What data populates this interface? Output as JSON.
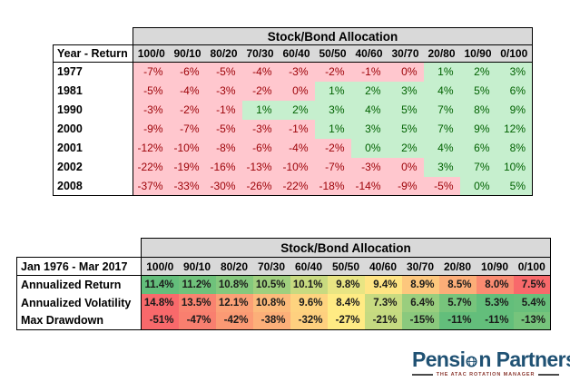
{
  "palette": {
    "header_bg": "#D9D9D9",
    "negative_bg": "#FFC7CE",
    "negative_text": "#9C0006",
    "positive_bg": "#C6EFCE",
    "positive_text": "#006100",
    "summary_value_text": "#1a1a1a",
    "brand_color": "#1F5173",
    "tagline_color": "#8B3A32"
  },
  "table1": {
    "title": "Stock/Bond Allocation",
    "corner_label": "Year - Return",
    "columns": [
      "100/0",
      "90/10",
      "80/20",
      "70/30",
      "60/40",
      "50/50",
      "40/60",
      "30/70",
      "20/80",
      "10/90",
      "0/100"
    ],
    "rows": [
      {
        "label": "1977",
        "values": [
          "-7%",
          "-6%",
          "-5%",
          "-4%",
          "-3%",
          "-2%",
          "-1%",
          "0%",
          "1%",
          "2%",
          "3%"
        ],
        "signs": [
          "n",
          "n",
          "n",
          "n",
          "n",
          "n",
          "n",
          "n",
          "p",
          "p",
          "p"
        ]
      },
      {
        "label": "1981",
        "values": [
          "-5%",
          "-4%",
          "-3%",
          "-2%",
          "0%",
          "1%",
          "2%",
          "3%",
          "4%",
          "5%",
          "6%"
        ],
        "signs": [
          "n",
          "n",
          "n",
          "n",
          "n",
          "p",
          "p",
          "p",
          "p",
          "p",
          "p"
        ]
      },
      {
        "label": "1990",
        "values": [
          "-3%",
          "-2%",
          "-1%",
          "1%",
          "2%",
          "3%",
          "4%",
          "5%",
          "7%",
          "8%",
          "9%"
        ],
        "signs": [
          "n",
          "n",
          "n",
          "p",
          "p",
          "p",
          "p",
          "p",
          "p",
          "p",
          "p"
        ]
      },
      {
        "label": "2000",
        "values": [
          "-9%",
          "-7%",
          "-5%",
          "-3%",
          "-1%",
          "1%",
          "3%",
          "5%",
          "7%",
          "9%",
          "12%"
        ],
        "signs": [
          "n",
          "n",
          "n",
          "n",
          "n",
          "p",
          "p",
          "p",
          "p",
          "p",
          "p"
        ]
      },
      {
        "label": "2001",
        "values": [
          "-12%",
          "-10%",
          "-8%",
          "-6%",
          "-4%",
          "-2%",
          "0%",
          "2%",
          "4%",
          "6%",
          "8%"
        ],
        "signs": [
          "n",
          "n",
          "n",
          "n",
          "n",
          "n",
          "p",
          "p",
          "p",
          "p",
          "p"
        ]
      },
      {
        "label": "2002",
        "values": [
          "-22%",
          "-19%",
          "-16%",
          "-13%",
          "-10%",
          "-7%",
          "-3%",
          "0%",
          "3%",
          "7%",
          "10%"
        ],
        "signs": [
          "n",
          "n",
          "n",
          "n",
          "n",
          "n",
          "n",
          "n",
          "p",
          "p",
          "p"
        ]
      },
      {
        "label": "2008",
        "values": [
          "-37%",
          "-33%",
          "-30%",
          "-26%",
          "-22%",
          "-18%",
          "-14%",
          "-9%",
          "-5%",
          "0%",
          "5%"
        ],
        "signs": [
          "n",
          "n",
          "n",
          "n",
          "n",
          "n",
          "n",
          "n",
          "n",
          "p",
          "p"
        ]
      }
    ]
  },
  "table2": {
    "title": "Stock/Bond Allocation",
    "corner_label": "Jan 1976 - Mar 2017",
    "columns": [
      "100/0",
      "90/10",
      "80/20",
      "70/30",
      "60/40",
      "50/50",
      "40/60",
      "30/70",
      "20/80",
      "10/90",
      "0/100"
    ],
    "rows": [
      {
        "label": "Annualized Return",
        "values": [
          "11.4%",
          "11.2%",
          "10.8%",
          "10.5%",
          "10.1%",
          "9.8%",
          "9.4%",
          "8.9%",
          "8.5%",
          "8.0%",
          "7.5%"
        ],
        "cell_colors": [
          "#63BE7B",
          "#6FC27B",
          "#84C87D",
          "#9FCF7E",
          "#C8DA80",
          "#E8E583",
          "#FFE483",
          "#FDC77D",
          "#FCAD78",
          "#FA8B71",
          "#F8696B"
        ]
      },
      {
        "label": "Annualized Volatility",
        "values": [
          "14.8%",
          "13.5%",
          "12.1%",
          "10.8%",
          "9.6%",
          "8.4%",
          "7.3%",
          "6.4%",
          "5.7%",
          "5.3%",
          "5.4%"
        ],
        "cell_colors": [
          "#F8696B",
          "#F98370",
          "#FBA076",
          "#FCBA7B",
          "#FED37F",
          "#FFEB84",
          "#C8DB81",
          "#9ACE7E",
          "#77C47C",
          "#63BE7B",
          "#68BF7B"
        ]
      },
      {
        "label": "Max Drawdown",
        "values": [
          "-51%",
          "-47%",
          "-42%",
          "-38%",
          "-32%",
          "-27%",
          "-21%",
          "-15%",
          "-11%",
          "-11%",
          "-13%"
        ],
        "cell_colors": [
          "#F8696B",
          "#F97F6F",
          "#FB9A74",
          "#FCAF79",
          "#FED07F",
          "#FFEB84",
          "#C5DA81",
          "#8AC97D",
          "#63BE7B",
          "#63BE7B",
          "#76C47C"
        ]
      }
    ]
  },
  "logo": {
    "name_part1": "Pensi",
    "name_part2": "n Partners",
    "tagline": "THE ATAC ROTATION MANAGER"
  },
  "chart_data": [
    {
      "type": "heatmap",
      "title": "Stock/Bond Allocation",
      "x_labels": [
        "100/0",
        "90/10",
        "80/20",
        "70/30",
        "60/40",
        "50/50",
        "40/60",
        "30/70",
        "20/80",
        "10/90",
        "0/100"
      ],
      "y_labels": [
        "1977",
        "1981",
        "1990",
        "2000",
        "2001",
        "2002",
        "2008"
      ],
      "values": [
        [
          -7,
          -6,
          -5,
          -4,
          -3,
          -2,
          -1,
          0,
          1,
          2,
          3
        ],
        [
          -5,
          -4,
          -3,
          -2,
          0,
          1,
          2,
          3,
          4,
          5,
          6
        ],
        [
          -3,
          -2,
          -1,
          1,
          2,
          3,
          4,
          5,
          7,
          8,
          9
        ],
        [
          -9,
          -7,
          -5,
          -3,
          -1,
          1,
          3,
          5,
          7,
          9,
          12
        ],
        [
          -12,
          -10,
          -8,
          -6,
          -4,
          -2,
          0,
          2,
          4,
          6,
          8
        ],
        [
          -22,
          -19,
          -16,
          -13,
          -10,
          -7,
          -3,
          0,
          3,
          7,
          10
        ],
        [
          -37,
          -33,
          -30,
          -26,
          -22,
          -18,
          -14,
          -9,
          -5,
          0,
          5
        ]
      ],
      "units": "percent",
      "color_rule": "pink fill for losses, green fill for gains"
    },
    {
      "type": "heatmap",
      "title": "Stock/Bond Allocation",
      "period": "Jan 1976 - Mar 2017",
      "x_labels": [
        "100/0",
        "90/10",
        "80/20",
        "70/30",
        "60/40",
        "50/50",
        "40/60",
        "30/70",
        "20/80",
        "10/90",
        "0/100"
      ],
      "y_labels": [
        "Annualized Return",
        "Annualized Volatility",
        "Max Drawdown"
      ],
      "values": [
        [
          11.4,
          11.2,
          10.8,
          10.5,
          10.1,
          9.8,
          9.4,
          8.9,
          8.5,
          8.0,
          7.5
        ],
        [
          14.8,
          13.5,
          12.1,
          10.8,
          9.6,
          8.4,
          7.3,
          6.4,
          5.7,
          5.3,
          5.4
        ],
        [
          -51,
          -47,
          -42,
          -38,
          -32,
          -27,
          -21,
          -15,
          -11,
          -11,
          -13
        ]
      ],
      "units": "percent",
      "color_rule": "red-yellow-green 3-color scale per row"
    }
  ]
}
